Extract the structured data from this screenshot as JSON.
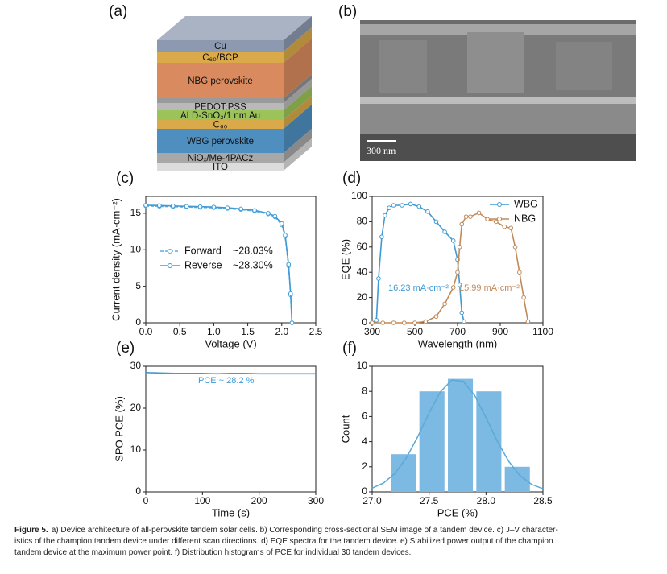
{
  "device_stack": {
    "panel": "(a)",
    "layers": [
      {
        "label": "Cu",
        "color": "#8c99b0"
      },
      {
        "label": "C₆₀/BCP",
        "color": "#d9a94a"
      },
      {
        "label": "NBG perovskite",
        "color": "#d98a5e"
      },
      {
        "label": "PEDOT:PSS",
        "color": "#b9b9b9"
      },
      {
        "label": "ALD-SnO₂/1 nm Au",
        "color": "#9cc35a"
      },
      {
        "label": "C₆₀",
        "color": "#d9a94a"
      },
      {
        "label": "WBG perovskite",
        "color": "#4f8fc0"
      },
      {
        "label": "NiOₓ/Me-4PACz",
        "color": "#a8a8a8"
      },
      {
        "label": "ITO",
        "color": "#dcdcdc"
      }
    ]
  },
  "sem_image": {
    "panel": "(b)",
    "scale_bar": "300 nm"
  },
  "chart_data": [
    {
      "type": "line",
      "panel": "(c)",
      "xlabel": "Voltage (V)",
      "ylabel": "Current density (mA·cm⁻²)",
      "xlim": [
        0,
        2.5
      ],
      "xticks": [
        {
          "value": 0,
          "label": "0.0"
        },
        0.5,
        {
          "value": 1,
          "label": "1.0"
        },
        1.5,
        {
          "value": 2,
          "label": "2.0"
        },
        2.5
      ],
      "ylim": [
        0,
        17.3
      ],
      "yticks": [
        0,
        5,
        10,
        15
      ],
      "legend": "center left",
      "series": [
        {
          "name": "Forward",
          "label": "~28.03%",
          "color": "#5aaee0",
          "dash": true,
          "marker": "circle",
          "x": [
            0,
            0.2,
            0.4,
            0.6,
            0.8,
            1.0,
            1.2,
            1.4,
            1.6,
            1.8,
            1.9,
            2.0,
            2.05,
            2.1,
            2.13,
            2.15
          ],
          "values": [
            16.0,
            15.95,
            15.9,
            15.85,
            15.8,
            15.75,
            15.65,
            15.5,
            15.3,
            14.9,
            14.5,
            13.4,
            11.8,
            7.8,
            3.8,
            0
          ]
        },
        {
          "name": "Reverse",
          "label": "~28.30%",
          "color": "#3f9ad6",
          "dash": false,
          "marker": "circle",
          "x": [
            0,
            0.2,
            0.4,
            0.6,
            0.8,
            1.0,
            1.2,
            1.4,
            1.6,
            1.8,
            1.9,
            2.0,
            2.05,
            2.1,
            2.13,
            2.15
          ],
          "values": [
            16.1,
            16.05,
            16.0,
            15.95,
            15.9,
            15.85,
            15.75,
            15.6,
            15.4,
            15.0,
            14.6,
            13.6,
            12.0,
            8.0,
            4.0,
            0
          ]
        }
      ]
    },
    {
      "type": "line",
      "panel": "(d)",
      "xlabel": "Wavelength (nm)",
      "ylabel": "EQE (%)",
      "xlim": [
        300,
        1100
      ],
      "xticks": [
        300,
        500,
        700,
        900,
        1100
      ],
      "ylim": [
        0,
        100
      ],
      "yticks": [
        0,
        20,
        40,
        60,
        80,
        100
      ],
      "legend": "upper right",
      "annotations": [
        {
          "text": "16.23 mA·cm⁻²",
          "color": "#3f9ad6"
        },
        {
          "text": "15.99 mA·cm⁻²",
          "color": "#c08a5a"
        }
      ],
      "series": [
        {
          "name": "WBG",
          "color": "#3f9ad6",
          "dash": false,
          "marker": "circle",
          "x": [
            300,
            320,
            330,
            345,
            360,
            380,
            400,
            440,
            480,
            520,
            560,
            600,
            640,
            680,
            700,
            710,
            720,
            730
          ],
          "values": [
            0,
            2,
            35,
            68,
            85,
            91,
            93,
            93,
            94,
            92,
            88,
            80,
            72,
            65,
            50,
            30,
            8,
            1
          ]
        },
        {
          "name": "NBG",
          "color": "#c08a5a",
          "dash": false,
          "marker": "circle",
          "x": [
            300,
            350,
            400,
            450,
            500,
            550,
            600,
            640,
            680,
            700,
            710,
            720,
            740,
            760,
            800,
            840,
            880,
            920,
            950,
            970,
            990,
            1010,
            1030
          ],
          "values": [
            0,
            0,
            0,
            0,
            0,
            1,
            5,
            15,
            28,
            40,
            60,
            78,
            84,
            84,
            87,
            82,
            80,
            76,
            75,
            60,
            40,
            20,
            1
          ]
        }
      ]
    },
    {
      "type": "line",
      "panel": "(e)",
      "xlabel": "Time (s)",
      "ylabel": "SPO PCE (%)",
      "xlim": [
        0,
        300
      ],
      "xticks": [
        0,
        100,
        200,
        300
      ],
      "ylim": [
        0,
        30
      ],
      "yticks": [
        0,
        10,
        20,
        30
      ],
      "annotations": [
        {
          "text": "PCE ~ 28.2 %",
          "color": "#3f9ad6"
        }
      ],
      "series": [
        {
          "name": "SPO",
          "color": "#3f9ad6",
          "dash": false,
          "x": [
            0,
            25,
            50,
            75,
            100,
            125,
            150,
            175,
            200,
            225,
            250,
            275,
            300
          ],
          "values": [
            28.5,
            28.4,
            28.3,
            28.3,
            28.3,
            28.2,
            28.3,
            28.3,
            28.2,
            28.2,
            28.2,
            28.2,
            28.2
          ]
        }
      ]
    },
    {
      "type": "histogram",
      "panel": "(f)",
      "xlabel": "PCE (%)",
      "ylabel": "Count",
      "xlim": [
        27,
        28.5
      ],
      "xticks": [
        {
          "value": 27,
          "label": "27.0"
        },
        27.5,
        {
          "value": 28,
          "label": "28.0"
        },
        28.5
      ],
      "ylim": [
        0,
        10
      ],
      "yticks": [
        0,
        2,
        4,
        6,
        8,
        10
      ],
      "color": "#7cb9e3",
      "bins": [
        27.15,
        27.4,
        27.65,
        27.9,
        28.15,
        28.4
      ],
      "values": [
        3,
        8,
        9,
        8,
        2
      ],
      "fit": {
        "color": "#5aaad8",
        "x": [
          27.0,
          27.1,
          27.2,
          27.3,
          27.4,
          27.5,
          27.6,
          27.7,
          27.8,
          27.9,
          28.0,
          28.1,
          28.2,
          28.3,
          28.4,
          28.5
        ],
        "values": [
          0.3,
          0.71,
          1.47,
          2.7,
          4.39,
          6.29,
          7.97,
          8.91,
          8.8,
          7.68,
          5.91,
          4.02,
          2.42,
          1.28,
          0.6,
          0.25
        ]
      }
    }
  ],
  "caption": {
    "label": "Figure 5.",
    "lines": [
      "a) Device architecture of all-perovskite tandem solar cells. b) Corresponding cross-sectional SEM image of a tandem device. c) J–V character-",
      "istics of the champion tandem device under different scan directions. d) EQE spectra for the tandem device. e) Stabilized power output of the champion",
      "tandem device at the maximum power point. f) Distribution histograms of PCE for individual 30 tandem devices."
    ]
  }
}
